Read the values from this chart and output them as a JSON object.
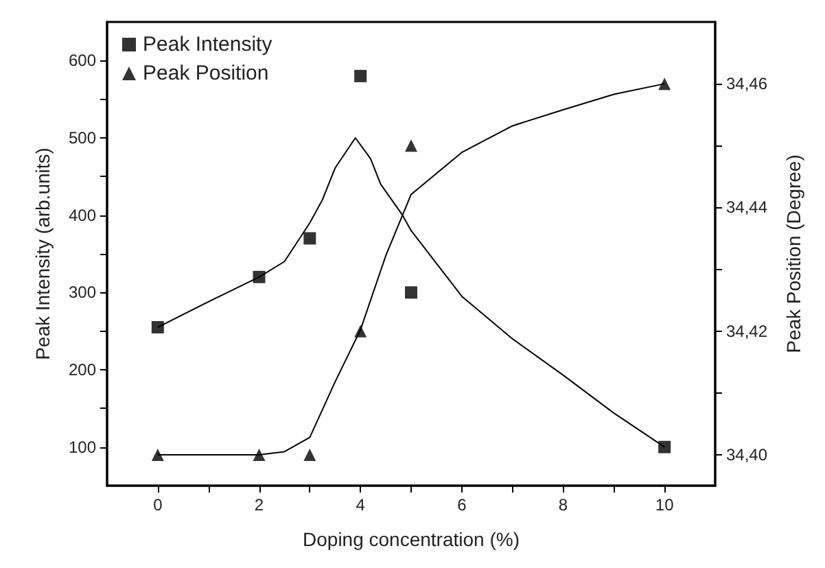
{
  "chart_data": {
    "type": "scatter",
    "xlabel": "Doping concentration (%)",
    "ylabel": "Peak Intensity (arb.units)",
    "y2label": "Peak Position (Degree)",
    "xlim": [
      -1,
      11
    ],
    "xticks": [
      0,
      {
        "value": 1,
        "label": null
      },
      2,
      {
        "value": 3,
        "label": null
      },
      4,
      {
        "value": 5,
        "label": null
      },
      6,
      {
        "value": 7,
        "label": null
      },
      8,
      {
        "value": 9,
        "label": null
      },
      10
    ],
    "ylim": [
      50,
      650
    ],
    "yticks": [
      100,
      {
        "value": 150,
        "label": null
      },
      200,
      {
        "value": 250,
        "label": null
      },
      300,
      {
        "value": 350,
        "label": null
      },
      400,
      {
        "value": 450,
        "label": null
      },
      500,
      {
        "value": 550,
        "label": null
      },
      600
    ],
    "y2lim": [
      34.395,
      34.47
    ],
    "y2ticks": [
      {
        "value": 34.4,
        "label": "34,40"
      },
      {
        "value": 34.41,
        "label": null
      },
      {
        "value": 34.42,
        "label": "34,42"
      },
      {
        "value": 34.43,
        "label": null
      },
      {
        "value": 34.44,
        "label": "34,44"
      },
      {
        "value": 34.45,
        "label": null
      },
      {
        "value": 34.46,
        "label": "34,46"
      }
    ],
    "grid": false,
    "legend": "top left",
    "series": [
      {
        "name": "Peak Intensity",
        "marker": "square",
        "color": "#000000",
        "x": [
          0,
          2,
          3,
          4,
          5,
          10
        ],
        "values": [
          255,
          320,
          370,
          580,
          300,
          100
        ]
      },
      {
        "name": "Peak Position",
        "marker": "triangle",
        "axis": "y2",
        "color": "#000000",
        "x": [
          0,
          2,
          3,
          4,
          5,
          10
        ],
        "values": [
          34.4,
          34.4,
          34.4,
          34.42,
          34.45,
          34.46
        ]
      },
      {
        "type": "line",
        "marker": "none",
        "color": "#000000",
        "x": [
          0,
          1,
          2,
          2.5,
          3,
          3.25,
          3.5,
          3.9,
          4.2,
          4.4,
          4.83,
          5,
          6,
          7,
          8,
          9,
          10
        ],
        "values": [
          255,
          288,
          320,
          340,
          390,
          420,
          461,
          500,
          473,
          440,
          400,
          380,
          295,
          240,
          193,
          144,
          100
        ]
      },
      {
        "type": "line",
        "marker": "none",
        "axis": "y2",
        "color": "#000000",
        "x": [
          0,
          1,
          2,
          2.5,
          3,
          3.5,
          4,
          4.5,
          5,
          6,
          7,
          8,
          9,
          10
        ],
        "values": [
          34.4,
          34.4,
          34.4,
          34.4005,
          34.4028,
          34.4118,
          34.4202,
          34.4322,
          34.4421,
          34.4489,
          34.4532,
          34.4558,
          34.4583,
          34.46
        ]
      }
    ]
  }
}
